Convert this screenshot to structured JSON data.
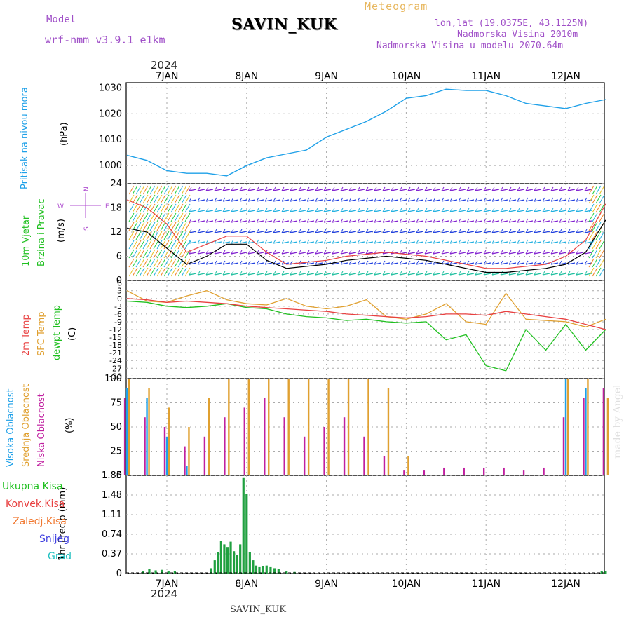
{
  "header": {
    "model_label": "Model",
    "model_name": "wrf-nmm_v3.9.1  e1km",
    "title": "SAVIN_KUK",
    "meteogram": "Meteogram",
    "lonlat": "lon,lat (19.0375E, 43.1125N)",
    "altitude": "Nadmorska Visina 2010m",
    "model_altitude": "Nadmorska Visina u modelu 2070.64m",
    "year_top": "2024",
    "year_bottom": "2024"
  },
  "footer": {
    "station": "SAVIN_KUK",
    "credit": "made by Angel"
  },
  "colors": {
    "pressure": "#1ea0e8",
    "temp2m": "#e84040",
    "sfc": "#e0a030",
    "dewpt": "#20c020",
    "wind_speed": "#000000",
    "gust": "#e84040",
    "cloud_high": "#1ea0e8",
    "cloud_mid": "#e0a030",
    "cloud_low": "#c020a0",
    "precip_total": "#20a040",
    "precip_conv": "#e84040",
    "precip_snow": "#4040e0"
  },
  "chart_data": [
    {
      "type": "line",
      "panel": "pressure",
      "ylabel_lines": [
        "Pritisak na nivou mora",
        "(hPa)"
      ],
      "ylim": [
        993,
        1032
      ],
      "yticks": [
        "1000",
        "1010",
        "1020",
        "1030"
      ],
      "xlabels": [
        "7JAN",
        "8JAN",
        "9JAN",
        "10JAN",
        "11JAN",
        "12JAN"
      ],
      "x_days": [
        6.5,
        6.75,
        7.0,
        7.25,
        7.5,
        7.75,
        8.0,
        8.25,
        8.5,
        8.75,
        9.0,
        9.25,
        9.5,
        9.75,
        10.0,
        10.25,
        10.5,
        10.75,
        11.0,
        11.25,
        11.5,
        11.75,
        12.0,
        12.25,
        12.5
      ],
      "series": [
        {
          "values": [
            1004,
            1002,
            998,
            997,
            997,
            996,
            1000,
            1003,
            1004.5,
            1006,
            1011,
            1014,
            1017,
            1021,
            1026,
            1027,
            1029.5,
            1029,
            1029,
            1027,
            1024,
            1023,
            1022,
            1024,
            1025.5
          ]
        }
      ]
    },
    {
      "type": "line",
      "panel": "wind",
      "ylabel_lines": [
        "10m Vjetar",
        "Brzina i Pravac",
        "(m/s)"
      ],
      "compass": [
        "N",
        "W",
        "E",
        "S"
      ],
      "ylim": [
        0,
        24
      ],
      "yticks": [
        "0",
        "6",
        "12",
        "18",
        "24"
      ],
      "series": [
        {
          "name": "speed",
          "values": [
            13,
            12,
            8,
            4,
            6,
            9,
            9,
            5,
            3,
            3.5,
            4,
            5,
            5.5,
            6,
            5.5,
            5,
            4,
            3,
            2,
            2,
            2.5,
            3,
            4,
            7,
            15
          ]
        },
        {
          "name": "gust",
          "values": [
            20,
            18,
            14,
            7,
            9,
            11,
            11,
            7,
            4,
            4.5,
            5,
            6,
            6.5,
            7,
            6.5,
            6,
            5,
            4,
            3,
            3,
            3.5,
            4,
            6,
            10,
            19
          ]
        }
      ]
    },
    {
      "type": "line",
      "panel": "temperature",
      "ylabel_lines": [
        "2m Temp",
        "SFC Temp",
        "dewpt Temp",
        "(C)"
      ],
      "ylim": [
        -31,
        7
      ],
      "yticks": [
        "6",
        "3",
        "0",
        "-3",
        "-6",
        "-9",
        "-12",
        "-15",
        "-18",
        "-21",
        "-24",
        "-27",
        "-30"
      ],
      "series": [
        {
          "name": "2m",
          "values": [
            0,
            -0.5,
            -1.5,
            -1,
            -1.5,
            -2,
            -3,
            -3.5,
            -4,
            -4.5,
            -5,
            -6,
            -6.5,
            -7,
            -7.5,
            -7,
            -6,
            -6,
            -6.5,
            -5,
            -6,
            -7,
            -8,
            -10,
            -12
          ]
        },
        {
          "name": "SFC",
          "values": [
            3,
            -1,
            -1.5,
            1,
            3,
            -0.5,
            -2,
            -2.5,
            0,
            -3,
            -4,
            -3,
            -0.5,
            -7,
            -8,
            -6,
            -2,
            -9,
            -10,
            2,
            -8,
            -8.5,
            -9,
            -11,
            -8
          ]
        },
        {
          "name": "dewpt",
          "values": [
            -1,
            -1.5,
            -3,
            -3.5,
            -3,
            -2,
            -3.5,
            -4,
            -6,
            -7,
            -7.5,
            -8.5,
            -8,
            -9,
            -9.5,
            -9,
            -16,
            -14,
            -26,
            -28,
            -12,
            -20,
            -10,
            -20,
            -12
          ]
        }
      ]
    },
    {
      "type": "bar",
      "panel": "clouds",
      "ylabel_lines": [
        "Visoka Oblacnost",
        "Srednja Oblacnost",
        "Niska Oblacnost",
        "(%)"
      ],
      "ylim": [
        0,
        100
      ],
      "yticks": [
        "0",
        "25",
        "50",
        "75",
        "100"
      ],
      "series": [
        {
          "name": "Visoka",
          "values": [
            90,
            80,
            40,
            10,
            0,
            0,
            0,
            0,
            0,
            0,
            0,
            0,
            0,
            0,
            0,
            0,
            0,
            0,
            0,
            0,
            0,
            0,
            100,
            90,
            0
          ]
        },
        {
          "name": "Srednja",
          "values": [
            100,
            90,
            70,
            50,
            80,
            100,
            100,
            100,
            100,
            100,
            100,
            100,
            100,
            90,
            20,
            0,
            0,
            0,
            0,
            0,
            0,
            0,
            100,
            100,
            80
          ]
        },
        {
          "name": "Niska",
          "values": [
            80,
            60,
            50,
            30,
            40,
            60,
            70,
            80,
            60,
            40,
            50,
            60,
            40,
            20,
            5,
            5,
            8,
            8,
            8,
            8,
            5,
            8,
            60,
            80,
            90
          ]
        }
      ]
    },
    {
      "type": "bar",
      "panel": "precip",
      "ylabel_lines": [
        "1hr Precip  (mm)"
      ],
      "legend": [
        "Ukupna  Kisa",
        "Konvek.Kisa",
        "Zaledj.Kisa",
        "Snijeg",
        "Grad"
      ],
      "ylim": [
        0,
        1.85
      ],
      "yticks": [
        "0",
        "0.37",
        "0.74",
        "1.11",
        "1.48",
        "1.85"
      ],
      "x_hours": [
        6.7,
        6.78,
        6.86,
        6.94,
        7.02,
        7.1,
        7.55,
        7.6,
        7.64,
        7.68,
        7.72,
        7.76,
        7.8,
        7.84,
        7.88,
        7.92,
        7.96,
        8.0,
        8.04,
        8.08,
        8.12,
        8.16,
        8.2,
        8.25,
        8.3,
        8.35,
        8.4,
        8.5,
        8.6,
        12.45,
        12.5
      ],
      "series": [
        {
          "name": "total",
          "values": [
            0.04,
            0.08,
            0.06,
            0.07,
            0.05,
            0.04,
            0.1,
            0.25,
            0.4,
            0.62,
            0.55,
            0.5,
            0.6,
            0.42,
            0.35,
            0.55,
            1.8,
            1.5,
            0.4,
            0.25,
            0.15,
            0.12,
            0.14,
            0.15,
            0.12,
            0.1,
            0.08,
            0.05,
            0.03,
            0.05,
            0.04
          ]
        }
      ]
    }
  ]
}
